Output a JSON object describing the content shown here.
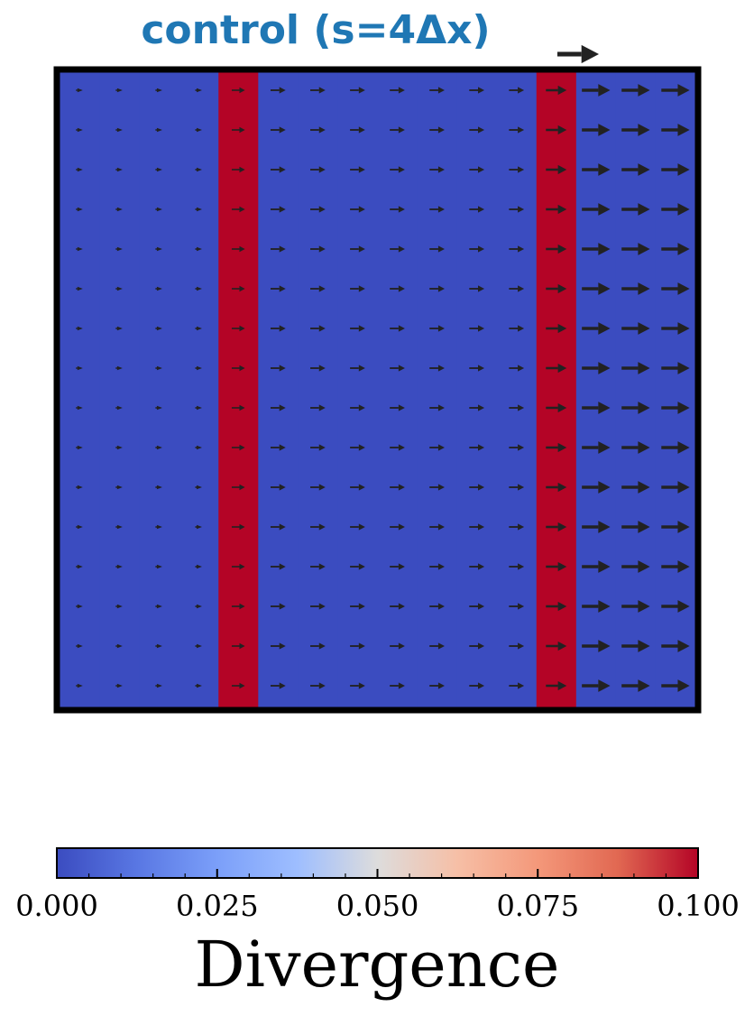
{
  "chart_data": {
    "type": "heatmap",
    "title": "control (s=4Δx)",
    "overlay": "quiver",
    "grid": false,
    "x_columns": 16,
    "y_rows": 16,
    "divergence_by_column": [
      0,
      0,
      0,
      0,
      0.1,
      0,
      0,
      0,
      0,
      0,
      0,
      0,
      0.1,
      0,
      0,
      0
    ],
    "arrow_length_by_column": [
      0.18,
      0.18,
      0.18,
      0.18,
      0.35,
      0.4,
      0.4,
      0.4,
      0.4,
      0.4,
      0.4,
      0.4,
      0.55,
      0.75,
      0.75,
      0.75
    ],
    "quiver_key_length": 1.0,
    "colorbar": {
      "label": "Divergence",
      "vmin": 0.0,
      "vmax": 0.1,
      "colormap": "coolwarm",
      "tick_labels": [
        "0.000",
        "0.025",
        "0.050",
        "0.075",
        "0.100"
      ],
      "tick_values": [
        0.0,
        0.025,
        0.05,
        0.075,
        0.1
      ]
    },
    "colors": {
      "low": "#3b4cc0",
      "high": "#b40426",
      "title": "#1f77b4",
      "arrow": "#222222"
    }
  }
}
